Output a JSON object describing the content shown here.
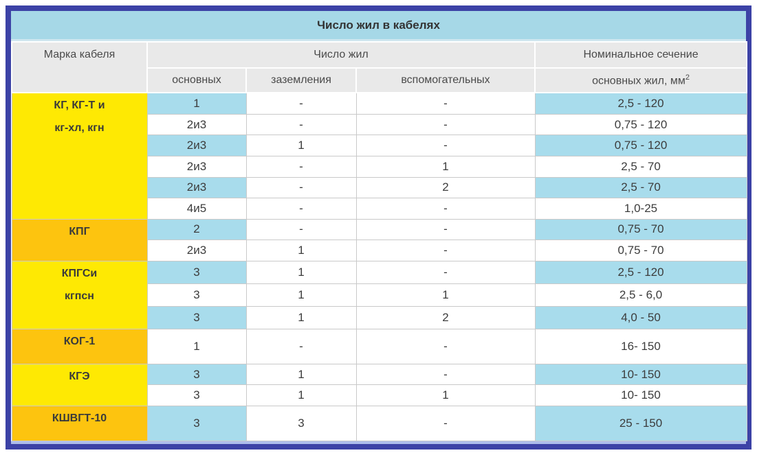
{
  "title": "Число жил в кабелях",
  "header": {
    "col_brand": "Марка кабеля",
    "col_cores": "Число жил",
    "col_section_line1": "Номинальное сечение",
    "sub_main": "основных",
    "sub_ground": "заземления",
    "sub_aux": "вспомогательных",
    "sub_section": "основных жил, мм",
    "sub_section_sup": "2"
  },
  "groups": [
    {
      "brand_lines": [
        "КГ, КГ-Т и",
        "кг-хл, кгн"
      ],
      "brand_color": "yellow",
      "rows": [
        {
          "main": "1",
          "ground": "-",
          "aux": "-",
          "section": "2,5 - 120",
          "shade": true
        },
        {
          "main": "2и3",
          "ground": "-",
          "aux": "-",
          "section": "0,75 - 120",
          "shade": false
        },
        {
          "main": "2и3",
          "ground": "1",
          "aux": "-",
          "section": "0,75 - 120",
          "shade": true
        },
        {
          "main": "2и3",
          "ground": "-",
          "aux": "1",
          "section": "2,5 - 70",
          "shade": false
        },
        {
          "main": "2и3",
          "ground": "-",
          "aux": "2",
          "section": "2,5 - 70",
          "shade": true
        },
        {
          "main": "4и5",
          "ground": "-",
          "aux": "-",
          "section": "1,0-25",
          "shade": false
        }
      ]
    },
    {
      "brand_lines": [
        "КПГ"
      ],
      "brand_color": "orange",
      "rows": [
        {
          "main": "2",
          "ground": "-",
          "aux": "-",
          "section": "0,75 - 70",
          "shade": true
        },
        {
          "main": "2и3",
          "ground": "1",
          "aux": "-",
          "section": "0,75 - 70",
          "shade": false
        }
      ]
    },
    {
      "brand_lines": [
        "КПГСи",
        "кгпсн"
      ],
      "brand_color": "yellow",
      "rows": [
        {
          "main": "3",
          "ground": "1",
          "aux": "-",
          "section": "2,5 - 120",
          "shade": true
        },
        {
          "main": "3",
          "ground": "1",
          "aux": "1",
          "section": "2,5 - 6,0",
          "shade": false
        },
        {
          "main": "3",
          "ground": "1",
          "aux": "2",
          "section": "4,0 - 50",
          "shade": true
        }
      ]
    },
    {
      "brand_lines": [
        "КОГ-1"
      ],
      "brand_color": "orange",
      "rows": [
        {
          "main": "1",
          "ground": "-",
          "aux": "-",
          "section": "16- 150",
          "shade": false
        }
      ]
    },
    {
      "brand_lines": [
        "КГЭ"
      ],
      "brand_color": "yellow",
      "rows": [
        {
          "main": "3",
          "ground": "1",
          "aux": "-",
          "section": "10- 150",
          "shade": true
        },
        {
          "main": "3",
          "ground": "1",
          "aux": "1",
          "section": "10- 150",
          "shade": false
        }
      ]
    },
    {
      "brand_lines": [
        "КШВГТ-10"
      ],
      "brand_color": "orange",
      "rows": [
        {
          "main": "3",
          "ground": "3",
          "aux": "-",
          "section": "25 - 150",
          "shade": true
        }
      ]
    }
  ],
  "colors": {
    "border": "#3c42a6",
    "title": "#a6d8e7",
    "header": "#e9e9e9",
    "blue": "#a8dcec",
    "yellow": "#fee903",
    "orange": "#fdc40f",
    "strip": "#aebdeb",
    "text": "#3c3c3c"
  },
  "chart_data": {
    "type": "table",
    "title": "Число жил в кабелях",
    "columns": [
      "Марка кабеля",
      "Число жил — основных",
      "Число жил — заземления",
      "Число жил — вспомогательных",
      "Номинальное сечение основных жил, мм2"
    ],
    "rows": [
      [
        "КГ, КГ-Т и кг-хл, кгн",
        "1",
        "-",
        "-",
        "2,5 - 120"
      ],
      [
        "КГ, КГ-Т и кг-хл, кгн",
        "2и3",
        "-",
        "-",
        "0,75 - 120"
      ],
      [
        "КГ, КГ-Т и кг-хл, кгн",
        "2и3",
        "1",
        "-",
        "0,75 - 120"
      ],
      [
        "КГ, КГ-Т и кг-хл, кгн",
        "2и3",
        "-",
        "1",
        "2,5 - 70"
      ],
      [
        "КГ, КГ-Т и кг-хл, кгн",
        "2и3",
        "-",
        "2",
        "2,5 - 70"
      ],
      [
        "КГ, КГ-Т и кг-хл, кгн",
        "4и5",
        "-",
        "-",
        "1,0-25"
      ],
      [
        "КПГ",
        "2",
        "-",
        "-",
        "0,75 - 70"
      ],
      [
        "КПГ",
        "2и3",
        "1",
        "-",
        "0,75 - 70"
      ],
      [
        "КПГСи кгпсн",
        "3",
        "1",
        "-",
        "2,5 - 120"
      ],
      [
        "КПГСи кгпсн",
        "3",
        "1",
        "1",
        "2,5 - 6,0"
      ],
      [
        "КПГСи кгпсн",
        "3",
        "1",
        "2",
        "4,0 - 50"
      ],
      [
        "КОГ-1",
        "1",
        "-",
        "-",
        "16- 150"
      ],
      [
        "КГЭ",
        "3",
        "1",
        "-",
        "10- 150"
      ],
      [
        "КГЭ",
        "3",
        "1",
        "1",
        "10- 150"
      ],
      [
        "КШВГТ-10",
        "3",
        "3",
        "-",
        "25 - 150"
      ]
    ]
  }
}
